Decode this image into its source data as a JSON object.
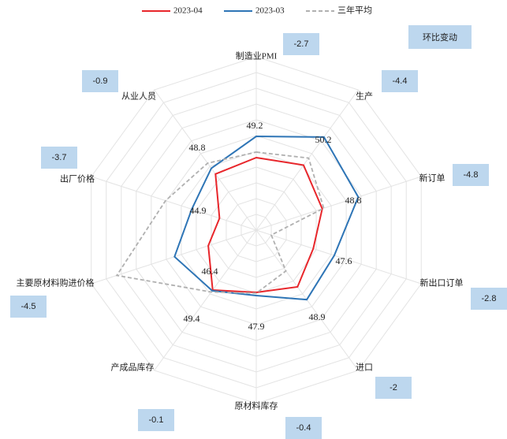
{
  "chart_data": {
    "type": "radar",
    "categories": [
      "制造业PMI",
      "生产",
      "新订单",
      "新出口订单",
      "进口",
      "原材料库存",
      "产成品库存",
      "主要原材料购进价格",
      "出厂价格",
      "从业人员"
    ],
    "series": [
      {
        "name": "2023-04",
        "color": "#e8262b",
        "values": [
          49.2,
          50.2,
          48.8,
          47.6,
          48.9,
          47.9,
          49.4,
          46.4,
          44.9,
          48.8
        ]
      },
      {
        "name": "2023-03",
        "color": "#2e75b6",
        "values": [
          51.9,
          54.6,
          53.6,
          50.4,
          50.9,
          48.3,
          49.5,
          50.9,
          48.6,
          49.7
        ]
      },
      {
        "name": "三年平均",
        "color": "#b0b0b0",
        "values": [
          49.9,
          51.3,
          49.0,
          42.0,
          46.4,
          48.0,
          49.7,
          58.6,
          52.1,
          50.5
        ]
      }
    ],
    "rlim": [
      40,
      62
    ],
    "rticks": [
      42,
      44,
      46,
      48,
      50,
      52,
      54,
      56,
      58,
      60,
      62
    ],
    "annotation_title": "环比变动",
    "changes": [
      -2.7,
      -4.4,
      -4.8,
      -2.8,
      -2,
      -0.4,
      -0.1,
      -4.5,
      -3.7,
      -0.9
    ]
  }
}
